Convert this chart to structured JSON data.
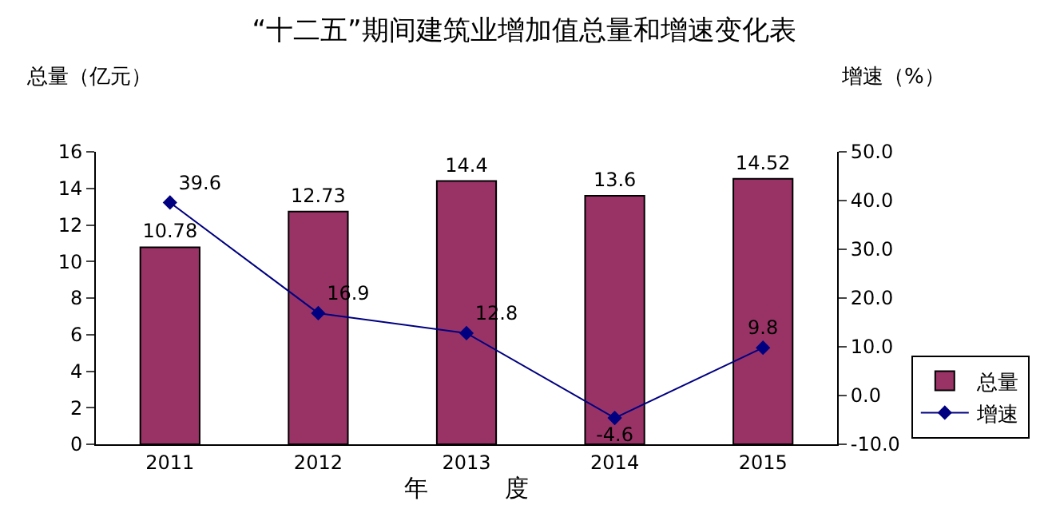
{
  "chart_data": {
    "type": "bar",
    "title": "“十二五”期间建筑业增加值总量和增速变化表",
    "ylabel": "总量（亿元）",
    "y2label": "增速（%）",
    "xlabel": "年          度",
    "categories": [
      "2011",
      "2012",
      "2013",
      "2014",
      "2015"
    ],
    "series": [
      {
        "name": "总量",
        "color": "#993366",
        "values": [
          10.78,
          12.73,
          14.4,
          13.6,
          14.52
        ]
      },
      {
        "name": "增速",
        "type": "line",
        "axis": "y2",
        "color": "#000080",
        "marker": "diamond",
        "values": [
          39.6,
          16.9,
          12.8,
          -4.6,
          9.8
        ]
      }
    ],
    "ylim": [
      0,
      16
    ],
    "yticks": [
      0,
      2,
      4,
      6,
      8,
      10,
      12,
      14,
      16
    ],
    "y2lim": [
      -10,
      50
    ],
    "y2ticks": [
      {
        "value": -10,
        "label": "-10.0"
      },
      {
        "value": 0,
        "label": "0.0"
      },
      {
        "value": 10,
        "label": "10.0"
      },
      {
        "value": 20,
        "label": "20.0"
      },
      {
        "value": 30,
        "label": "30.0"
      },
      {
        "value": 40,
        "label": "40.0"
      },
      {
        "value": 50,
        "label": "50.0"
      }
    ],
    "data_labels": true,
    "legend": "bottom right"
  }
}
